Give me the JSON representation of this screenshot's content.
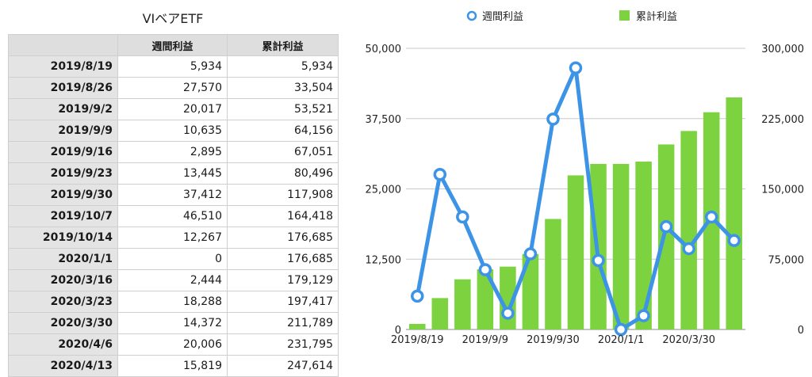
{
  "table": {
    "title": "VIベアETF",
    "headers": [
      "",
      "週間利益",
      "累計利益"
    ],
    "rows": [
      [
        "2019/8/19",
        "5,934",
        "5,934"
      ],
      [
        "2019/8/26",
        "27,570",
        "33,504"
      ],
      [
        "2019/9/2",
        "20,017",
        "53,521"
      ],
      [
        "2019/9/9",
        "10,635",
        "64,156"
      ],
      [
        "2019/9/16",
        "2,895",
        "67,051"
      ],
      [
        "2019/9/23",
        "13,445",
        "80,496"
      ],
      [
        "2019/9/30",
        "37,412",
        "117,908"
      ],
      [
        "2019/10/7",
        "46,510",
        "164,418"
      ],
      [
        "2019/10/14",
        "12,267",
        "176,685"
      ],
      [
        "2020/1/1",
        "0",
        "176,685"
      ],
      [
        "2020/3/16",
        "2,444",
        "179,129"
      ],
      [
        "2020/3/23",
        "18,288",
        "197,417"
      ],
      [
        "2020/3/30",
        "14,372",
        "211,789"
      ],
      [
        "2020/4/6",
        "20,006",
        "231,795"
      ],
      [
        "2020/4/13",
        "15,819",
        "247,614"
      ]
    ]
  },
  "chart_data": {
    "type": "bar",
    "categories": [
      "2019/8/19",
      "2019/8/26",
      "2019/9/2",
      "2019/9/9",
      "2019/9/16",
      "2019/9/23",
      "2019/9/30",
      "2019/10/7",
      "2019/10/14",
      "2020/1/1",
      "2020/3/16",
      "2020/3/23",
      "2020/3/30",
      "2020/4/6",
      "2020/4/13"
    ],
    "x_tick_labels": [
      "2019/8/19",
      "2019/9/9",
      "2019/9/30",
      "2020/1/1",
      "2020/3/30"
    ],
    "x_tick_indices": [
      0,
      3,
      6,
      9,
      12
    ],
    "series": [
      {
        "name": "週間利益",
        "type": "line",
        "axis": "left",
        "color": "#3d94e6",
        "values": [
          5934,
          27570,
          20017,
          10635,
          2895,
          13445,
          37412,
          46510,
          12267,
          0,
          2444,
          18288,
          14372,
          20006,
          15819
        ]
      },
      {
        "name": "累計利益",
        "type": "bar",
        "axis": "right",
        "color": "#7dd33f",
        "values": [
          5934,
          33504,
          53521,
          64156,
          67051,
          80496,
          117908,
          164418,
          176685,
          176685,
          179129,
          197417,
          211789,
          231795,
          247614
        ]
      }
    ],
    "y_left": {
      "lim": [
        0,
        50000
      ],
      "ticks": [
        "0",
        "12,500",
        "25,000",
        "37,500",
        "50,000"
      ],
      "tick_values": [
        0,
        12500,
        25000,
        37500,
        50000
      ]
    },
    "y_right": {
      "lim": [
        0,
        300000
      ],
      "ticks": [
        "0",
        "75,000",
        "150,000",
        "225,000",
        "300,000"
      ],
      "tick_values": [
        0,
        75000,
        150000,
        225000,
        300000
      ]
    },
    "legend": {
      "position": "top",
      "labels": [
        "週間利益",
        "累計利益"
      ]
    },
    "grid": true
  }
}
